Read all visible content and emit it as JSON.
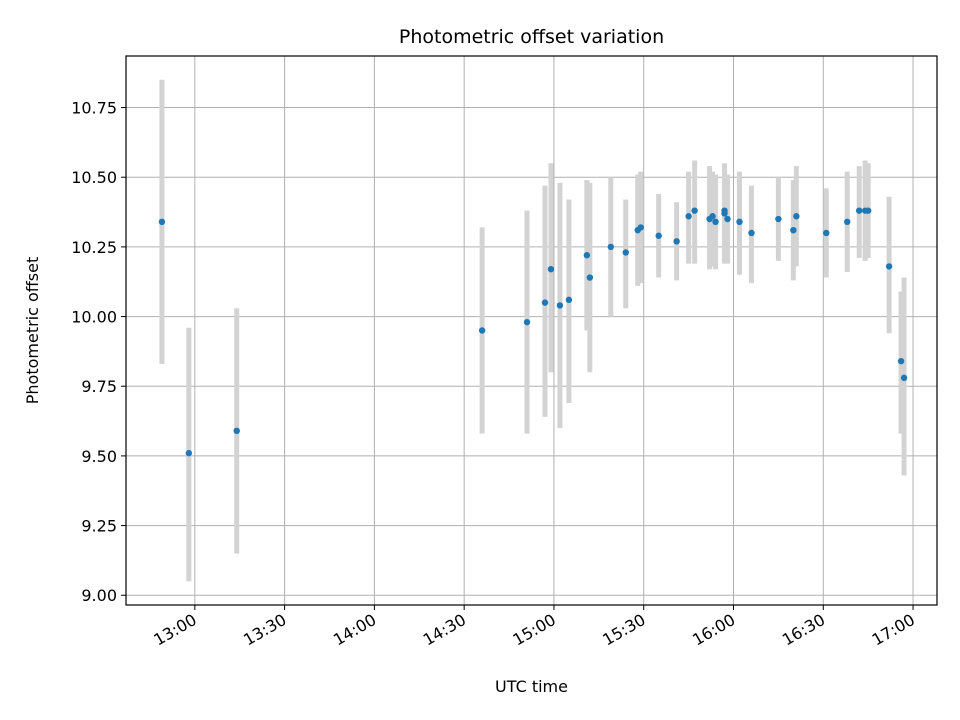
{
  "chart_data": {
    "type": "scatter",
    "title": "Photometric offset variation",
    "xlabel": "UTC time",
    "ylabel": "Photometric offset",
    "xlim": [
      "12:37",
      "17:08"
    ],
    "ylim": [
      8.965,
      10.935
    ],
    "x_ticks": [
      "13:00",
      "13:30",
      "14:00",
      "14:30",
      "15:00",
      "15:30",
      "16:00",
      "16:30",
      "17:00"
    ],
    "y_ticks": [
      "9.00",
      "9.25",
      "9.50",
      "9.75",
      "10.00",
      "10.25",
      "10.50",
      "10.75"
    ],
    "grid": true,
    "colors": {
      "points": "#1f77b4",
      "errorbars": "#d3d3d3",
      "grid": "#b0b0b0"
    },
    "series": [
      {
        "points": [
          {
            "x": "12:49",
            "y": 10.34,
            "lo": 9.83,
            "hi": 10.85
          },
          {
            "x": "12:58",
            "y": 9.51,
            "lo": 9.05,
            "hi": 9.96
          },
          {
            "x": "13:14",
            "y": 9.59,
            "lo": 9.15,
            "hi": 10.03
          },
          {
            "x": "14:36",
            "y": 9.95,
            "lo": 9.58,
            "hi": 10.32
          },
          {
            "x": "14:51",
            "y": 9.98,
            "lo": 9.58,
            "hi": 10.38
          },
          {
            "x": "14:57",
            "y": 10.05,
            "lo": 9.64,
            "hi": 10.47
          },
          {
            "x": "14:59",
            "y": 10.17,
            "lo": 9.8,
            "hi": 10.55
          },
          {
            "x": "15:02",
            "y": 10.04,
            "lo": 9.6,
            "hi": 10.48
          },
          {
            "x": "15:05",
            "y": 10.06,
            "lo": 9.69,
            "hi": 10.42
          },
          {
            "x": "15:11",
            "y": 10.22,
            "lo": 9.95,
            "hi": 10.49
          },
          {
            "x": "15:12",
            "y": 10.14,
            "lo": 9.8,
            "hi": 10.48
          },
          {
            "x": "15:19",
            "y": 10.25,
            "lo": 10.0,
            "hi": 10.5
          },
          {
            "x": "15:24",
            "y": 10.23,
            "lo": 10.03,
            "hi": 10.42
          },
          {
            "x": "15:28",
            "y": 10.31,
            "lo": 10.11,
            "hi": 10.51
          },
          {
            "x": "15:29",
            "y": 10.32,
            "lo": 10.12,
            "hi": 10.52
          },
          {
            "x": "15:35",
            "y": 10.29,
            "lo": 10.14,
            "hi": 10.44
          },
          {
            "x": "15:41",
            "y": 10.27,
            "lo": 10.13,
            "hi": 10.41
          },
          {
            "x": "15:45",
            "y": 10.36,
            "lo": 10.19,
            "hi": 10.52
          },
          {
            "x": "15:47",
            "y": 10.38,
            "lo": 10.19,
            "hi": 10.56
          },
          {
            "x": "15:52",
            "y": 10.35,
            "lo": 10.17,
            "hi": 10.54
          },
          {
            "x": "15:53",
            "y": 10.36,
            "lo": 10.18,
            "hi": 10.52
          },
          {
            "x": "15:54",
            "y": 10.34,
            "lo": 10.17,
            "hi": 10.51
          },
          {
            "x": "15:57",
            "y": 10.38,
            "lo": 10.22,
            "hi": 10.55
          },
          {
            "x": "15:57",
            "y": 10.37,
            "lo": 10.19,
            "hi": 10.53
          },
          {
            "x": "15:58",
            "y": 10.35,
            "lo": 10.19,
            "hi": 10.51
          },
          {
            "x": "16:02",
            "y": 10.34,
            "lo": 10.15,
            "hi": 10.52
          },
          {
            "x": "16:06",
            "y": 10.3,
            "lo": 10.12,
            "hi": 10.47
          },
          {
            "x": "16:15",
            "y": 10.35,
            "lo": 10.2,
            "hi": 10.5
          },
          {
            "x": "16:20",
            "y": 10.31,
            "lo": 10.13,
            "hi": 10.49
          },
          {
            "x": "16:21",
            "y": 10.36,
            "lo": 10.18,
            "hi": 10.54
          },
          {
            "x": "16:31",
            "y": 10.3,
            "lo": 10.14,
            "hi": 10.46
          },
          {
            "x": "16:38",
            "y": 10.34,
            "lo": 10.16,
            "hi": 10.52
          },
          {
            "x": "16:42",
            "y": 10.38,
            "lo": 10.21,
            "hi": 10.54
          },
          {
            "x": "16:44",
            "y": 10.38,
            "lo": 10.2,
            "hi": 10.56
          },
          {
            "x": "16:45",
            "y": 10.38,
            "lo": 10.21,
            "hi": 10.55
          },
          {
            "x": "16:52",
            "y": 10.18,
            "lo": 9.94,
            "hi": 10.43
          },
          {
            "x": "16:56",
            "y": 9.84,
            "lo": 9.58,
            "hi": 10.09
          },
          {
            "x": "16:57",
            "y": 9.78,
            "lo": 9.43,
            "hi": 10.14
          }
        ]
      }
    ]
  }
}
